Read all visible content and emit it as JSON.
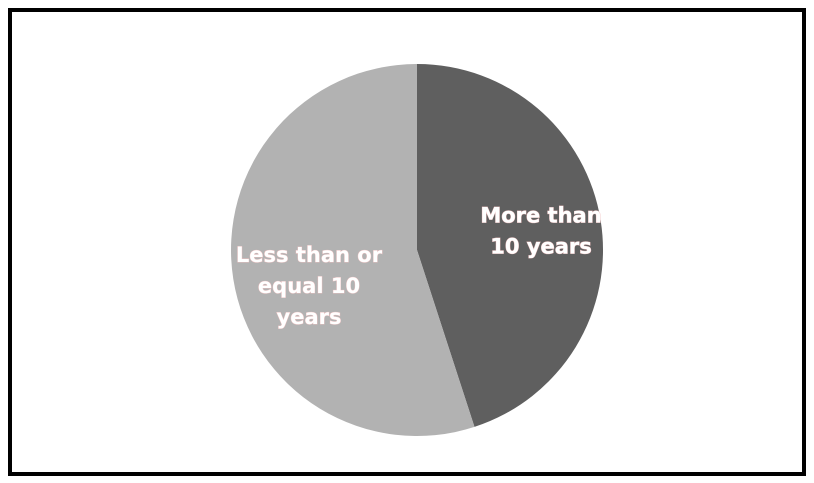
{
  "chart_data": {
    "type": "pie",
    "title": "",
    "slices": [
      {
        "label_lines": [
          "More than",
          "10 years"
        ],
        "value": 45,
        "color": "#5f5f5f"
      },
      {
        "label_lines": [
          "Less than or",
          "equal 10",
          "years"
        ],
        "value": 55,
        "color": "#b2b2b2"
      }
    ],
    "legend": "none"
  }
}
